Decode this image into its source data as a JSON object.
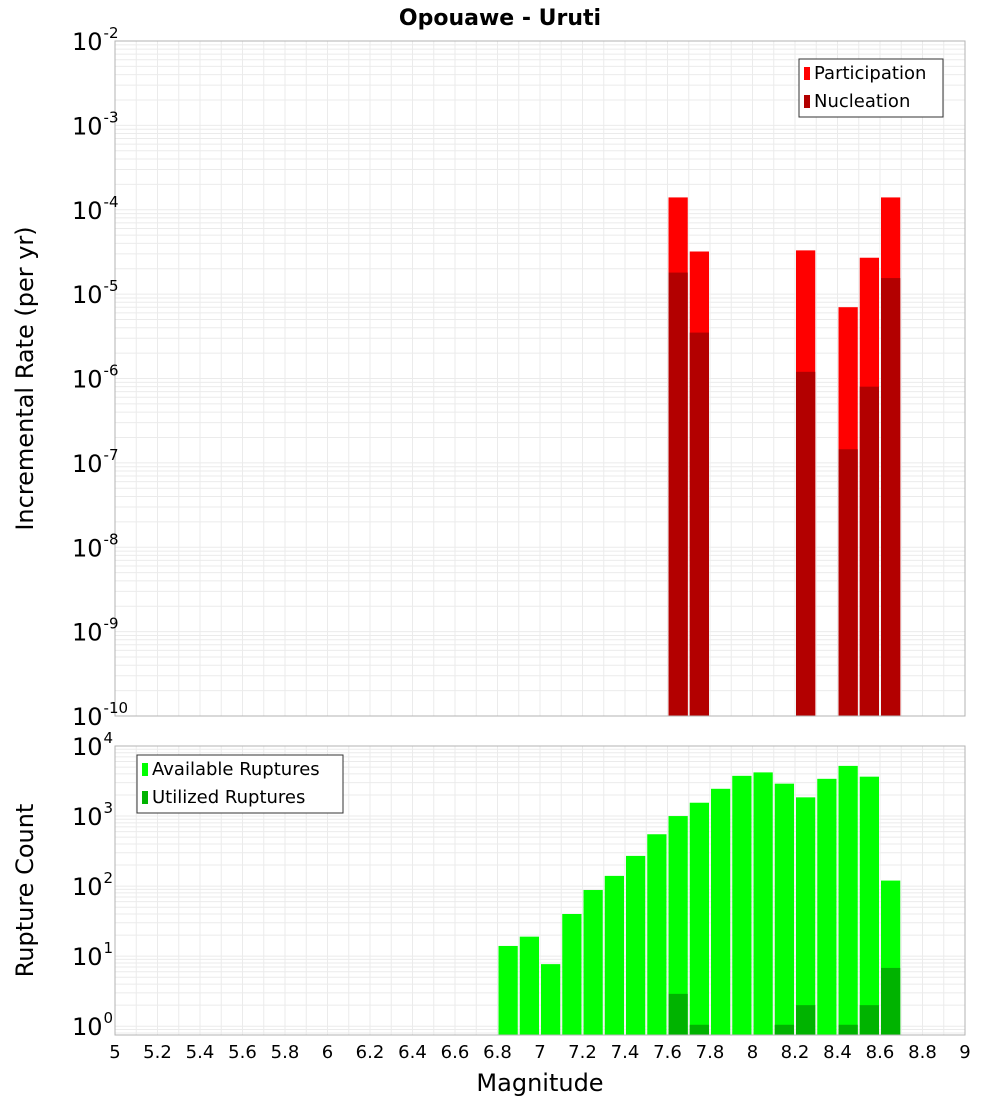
{
  "chart_data": [
    {
      "type": "bar",
      "title": "Opouawe - Uruti",
      "xlabel": "",
      "ylabel": "Incremental Rate (per yr)",
      "yscale": "log",
      "ylim": [
        1e-10,
        0.01
      ],
      "xlim": [
        5,
        9
      ],
      "grid": true,
      "legend_placement": "top-right",
      "overlay": true,
      "x": [
        7.65,
        7.75,
        8.25,
        8.45,
        8.55,
        8.65
      ],
      "series": [
        {
          "name": "Participation",
          "color": "#ff0000",
          "values": [
            0.00014,
            3.2e-05,
            3.3e-05,
            7e-06,
            2.7e-05,
            0.00014
          ]
        },
        {
          "name": "Nucleation",
          "color": "#b30000",
          "values": [
            1.8e-05,
            3.5e-06,
            1.2e-06,
            1.45e-07,
            8e-07,
            1.55e-05
          ]
        }
      ]
    },
    {
      "type": "bar",
      "title": "",
      "xlabel": "Magnitude",
      "ylabel": "Rupture Count",
      "yscale": "log",
      "ylim": [
        0.75,
        10000
      ],
      "xlim": [
        5,
        9
      ],
      "grid": true,
      "legend_placement": "top-left",
      "overlay": true,
      "x": [
        6.85,
        6.95,
        7.05,
        7.15,
        7.25,
        7.35,
        7.45,
        7.55,
        7.65,
        7.75,
        7.85,
        7.95,
        8.05,
        8.15,
        8.25,
        8.35,
        8.45,
        8.55,
        8.65
      ],
      "series": [
        {
          "name": "Available Ruptures",
          "color": "#00ff00",
          "values": [
            14,
            19,
            7.7,
            40,
            88,
            140,
            270,
            550,
            1000,
            1550,
            2450,
            3750,
            4200,
            2900,
            1850,
            3400,
            5200,
            3650,
            120
          ]
        },
        {
          "name": "Utilized Ruptures",
          "color": "#00b300",
          "values": [
            0,
            0,
            0,
            0,
            0,
            0,
            0,
            0,
            2.9,
            1.05,
            0,
            0,
            0,
            1.05,
            2,
            0,
            1.05,
            2,
            6.8
          ]
        }
      ]
    }
  ],
  "x_ticks": [
    "5",
    "5.2",
    "5.4",
    "5.6",
    "5.8",
    "6",
    "6.2",
    "6.4",
    "6.6",
    "6.8",
    "7",
    "7.2",
    "7.4",
    "7.6",
    "7.8",
    "8",
    "8.2",
    "8.4",
    "8.6",
    "8.8",
    "9"
  ],
  "x_tick_values": [
    5,
    5.2,
    5.4,
    5.6,
    5.8,
    6,
    6.2,
    6.4,
    6.6,
    6.8,
    7,
    7.2,
    7.4,
    7.6,
    7.8,
    8,
    8.2,
    8.4,
    8.6,
    8.8,
    9
  ],
  "top_y_ticks": [
    {
      "base": "10",
      "exp": "-2",
      "value": 0.01
    },
    {
      "base": "10",
      "exp": "-3",
      "value": 0.001
    },
    {
      "base": "10",
      "exp": "-4",
      "value": 0.0001
    },
    {
      "base": "10",
      "exp": "-5",
      "value": 1e-05
    },
    {
      "base": "10",
      "exp": "-6",
      "value": 1e-06
    },
    {
      "base": "10",
      "exp": "-7",
      "value": 1e-07
    },
    {
      "base": "10",
      "exp": "-8",
      "value": 1e-08
    },
    {
      "base": "10",
      "exp": "-9",
      "value": 1e-09
    },
    {
      "base": "10",
      "exp": "-10",
      "value": 1e-10
    }
  ],
  "bottom_y_ticks": [
    {
      "base": "10",
      "exp": "4",
      "value": 10000.0
    },
    {
      "base": "10",
      "exp": "3",
      "value": 1000.0
    },
    {
      "base": "10",
      "exp": "2",
      "value": 100.0
    },
    {
      "base": "10",
      "exp": "1",
      "value": 10.0
    },
    {
      "base": "10",
      "exp": "0",
      "value": 1
    }
  ],
  "colors": {
    "grid": "#ebebeb",
    "frame": "#b3b3b3",
    "background": "#ffffff"
  }
}
